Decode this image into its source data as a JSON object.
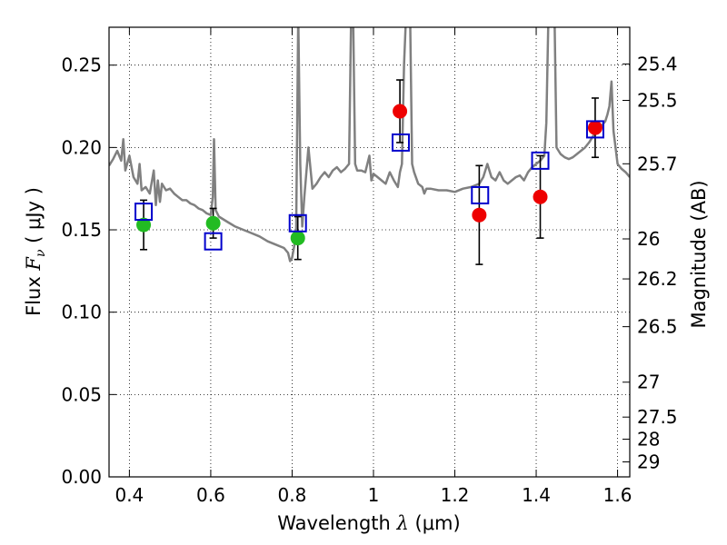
{
  "chart_data": {
    "type": "scatter",
    "xlabel": {
      "prefix": "Wavelength ",
      "symbol": "λ",
      "unit": " (μm)"
    },
    "ylabel": {
      "prefix": "Flux  ",
      "symbol": "F",
      "sub": "ν",
      "unit": "  ( μJy )"
    },
    "y2label": "Magnitude (AB)",
    "xlim": [
      0.35,
      1.63
    ],
    "ylim": [
      0.0,
      0.273
    ],
    "grid": true,
    "x_ticks": [
      {
        "value": 0.4,
        "label": "0.4"
      },
      {
        "value": 0.6,
        "label": "0.6"
      },
      {
        "value": 0.8,
        "label": "0.8"
      },
      {
        "value": 1.0,
        "label": "1"
      },
      {
        "value": 1.2,
        "label": "1.2"
      },
      {
        "value": 1.4,
        "label": "1.4"
      },
      {
        "value": 1.6,
        "label": "1.6"
      }
    ],
    "y_ticks": [
      {
        "value": 0.0,
        "label": "0.00"
      },
      {
        "value": 0.05,
        "label": "0.05"
      },
      {
        "value": 0.1,
        "label": "0.10"
      },
      {
        "value": 0.15,
        "label": "0.15"
      },
      {
        "value": 0.2,
        "label": "0.20"
      },
      {
        "value": 0.25,
        "label": "0.25"
      }
    ],
    "magnitude_ticks": [
      {
        "label": "25.4",
        "flux": 0.2507
      },
      {
        "label": "25.5",
        "flux": 0.2286
      },
      {
        "label": "25.7",
        "flux": 0.1901
      },
      {
        "label": "26",
        "flux": 0.1445
      },
      {
        "label": "26.2",
        "flux": 0.1202
      },
      {
        "label": "26.5",
        "flux": 0.0912
      },
      {
        "label": "27",
        "flux": 0.0575
      },
      {
        "label": "27.5",
        "flux": 0.0363
      },
      {
        "label": "28",
        "flux": 0.0229
      },
      {
        "label": "29",
        "flux": 0.0091
      }
    ],
    "model_spectrum": {
      "color": "#808080",
      "points": [
        [
          0.35,
          0.189
        ],
        [
          0.36,
          0.193
        ],
        [
          0.37,
          0.198
        ],
        [
          0.38,
          0.192
        ],
        [
          0.385,
          0.205
        ],
        [
          0.39,
          0.186
        ],
        [
          0.4,
          0.195
        ],
        [
          0.41,
          0.182
        ],
        [
          0.42,
          0.178
        ],
        [
          0.425,
          0.19
        ],
        [
          0.43,
          0.174
        ],
        [
          0.44,
          0.176
        ],
        [
          0.45,
          0.172
        ],
        [
          0.46,
          0.186
        ],
        [
          0.465,
          0.165
        ],
        [
          0.47,
          0.18
        ],
        [
          0.475,
          0.167
        ],
        [
          0.48,
          0.178
        ],
        [
          0.49,
          0.174
        ],
        [
          0.5,
          0.175
        ],
        [
          0.51,
          0.172
        ],
        [
          0.52,
          0.17
        ],
        [
          0.53,
          0.168
        ],
        [
          0.54,
          0.168
        ],
        [
          0.55,
          0.166
        ],
        [
          0.56,
          0.165
        ],
        [
          0.57,
          0.163
        ],
        [
          0.58,
          0.162
        ],
        [
          0.59,
          0.16
        ],
        [
          0.6,
          0.159
        ],
        [
          0.605,
          0.17
        ],
        [
          0.608,
          0.205
        ],
        [
          0.612,
          0.162
        ],
        [
          0.62,
          0.158
        ],
        [
          0.64,
          0.155
        ],
        [
          0.66,
          0.152
        ],
        [
          0.68,
          0.15
        ],
        [
          0.7,
          0.148
        ],
        [
          0.72,
          0.146
        ],
        [
          0.74,
          0.143
        ],
        [
          0.76,
          0.141
        ],
        [
          0.78,
          0.139
        ],
        [
          0.79,
          0.136
        ],
        [
          0.795,
          0.131
        ],
        [
          0.8,
          0.133
        ],
        [
          0.805,
          0.14
        ],
        [
          0.81,
          0.15
        ],
        [
          0.815,
          0.28
        ],
        [
          0.82,
          0.19
        ],
        [
          0.825,
          0.152
        ],
        [
          0.83,
          0.17
        ],
        [
          0.84,
          0.2
        ],
        [
          0.85,
          0.175
        ],
        [
          0.86,
          0.178
        ],
        [
          0.87,
          0.182
        ],
        [
          0.88,
          0.185
        ],
        [
          0.89,
          0.182
        ],
        [
          0.9,
          0.186
        ],
        [
          0.91,
          0.188
        ],
        [
          0.92,
          0.185
        ],
        [
          0.93,
          0.187
        ],
        [
          0.94,
          0.19
        ],
        [
          0.945,
          0.28
        ],
        [
          0.95,
          0.28
        ],
        [
          0.955,
          0.19
        ],
        [
          0.96,
          0.186
        ],
        [
          0.97,
          0.186
        ],
        [
          0.98,
          0.185
        ],
        [
          0.99,
          0.195
        ],
        [
          0.995,
          0.18
        ],
        [
          1.0,
          0.184
        ],
        [
          1.01,
          0.182
        ],
        [
          1.02,
          0.18
        ],
        [
          1.03,
          0.178
        ],
        [
          1.04,
          0.185
        ],
        [
          1.05,
          0.18
        ],
        [
          1.06,
          0.176
        ],
        [
          1.065,
          0.185
        ],
        [
          1.07,
          0.19
        ],
        [
          1.075,
          0.25
        ],
        [
          1.08,
          0.28
        ],
        [
          1.09,
          0.28
        ],
        [
          1.095,
          0.19
        ],
        [
          1.1,
          0.185
        ],
        [
          1.11,
          0.178
        ],
        [
          1.12,
          0.176
        ],
        [
          1.125,
          0.172
        ],
        [
          1.13,
          0.175
        ],
        [
          1.14,
          0.175
        ],
        [
          1.16,
          0.174
        ],
        [
          1.18,
          0.174
        ],
        [
          1.2,
          0.173
        ],
        [
          1.22,
          0.175
        ],
        [
          1.24,
          0.176
        ],
        [
          1.26,
          0.178
        ],
        [
          1.27,
          0.182
        ],
        [
          1.28,
          0.19
        ],
        [
          1.29,
          0.182
        ],
        [
          1.3,
          0.18
        ],
        [
          1.31,
          0.185
        ],
        [
          1.32,
          0.18
        ],
        [
          1.33,
          0.178
        ],
        [
          1.34,
          0.18
        ],
        [
          1.35,
          0.182
        ],
        [
          1.36,
          0.183
        ],
        [
          1.37,
          0.18
        ],
        [
          1.38,
          0.185
        ],
        [
          1.39,
          0.188
        ],
        [
          1.4,
          0.19
        ],
        [
          1.41,
          0.192
        ],
        [
          1.42,
          0.195
        ],
        [
          1.425,
          0.215
        ],
        [
          1.43,
          0.28
        ],
        [
          1.445,
          0.28
        ],
        [
          1.45,
          0.2
        ],
        [
          1.46,
          0.196
        ],
        [
          1.47,
          0.194
        ],
        [
          1.48,
          0.193
        ],
        [
          1.49,
          0.194
        ],
        [
          1.5,
          0.196
        ],
        [
          1.51,
          0.198
        ],
        [
          1.52,
          0.2
        ],
        [
          1.53,
          0.203
        ],
        [
          1.54,
          0.207
        ],
        [
          1.55,
          0.21
        ],
        [
          1.56,
          0.213
        ],
        [
          1.57,
          0.216
        ],
        [
          1.575,
          0.22
        ],
        [
          1.58,
          0.225
        ],
        [
          1.585,
          0.24
        ],
        [
          1.59,
          0.21
        ],
        [
          1.6,
          0.19
        ],
        [
          1.61,
          0.187
        ],
        [
          1.62,
          0.185
        ],
        [
          1.63,
          0.182
        ]
      ]
    },
    "series": [
      {
        "marker": "circle",
        "color": "#22bb22",
        "points": [
          {
            "x": 0.435,
            "y": 0.153,
            "err": 0.015
          },
          {
            "x": 0.606,
            "y": 0.154,
            "err": 0.009
          },
          {
            "x": 0.814,
            "y": 0.145,
            "err": 0.013
          }
        ]
      },
      {
        "marker": "circle",
        "color": "#ee0000",
        "points": [
          {
            "x": 1.065,
            "y": 0.222,
            "err": 0.019
          },
          {
            "x": 1.26,
            "y": 0.159,
            "err": 0.03
          },
          {
            "x": 1.41,
            "y": 0.17,
            "err": 0.025
          },
          {
            "x": 1.545,
            "y": 0.212,
            "err": 0.018
          }
        ]
      },
      {
        "marker": "open-square",
        "color": "#0000cc",
        "points": [
          {
            "x": 0.435,
            "y": 0.161
          },
          {
            "x": 0.606,
            "y": 0.143
          },
          {
            "x": 0.814,
            "y": 0.154
          },
          {
            "x": 1.067,
            "y": 0.203
          },
          {
            "x": 1.262,
            "y": 0.171
          },
          {
            "x": 1.41,
            "y": 0.192
          },
          {
            "x": 1.545,
            "y": 0.211
          }
        ]
      }
    ]
  }
}
